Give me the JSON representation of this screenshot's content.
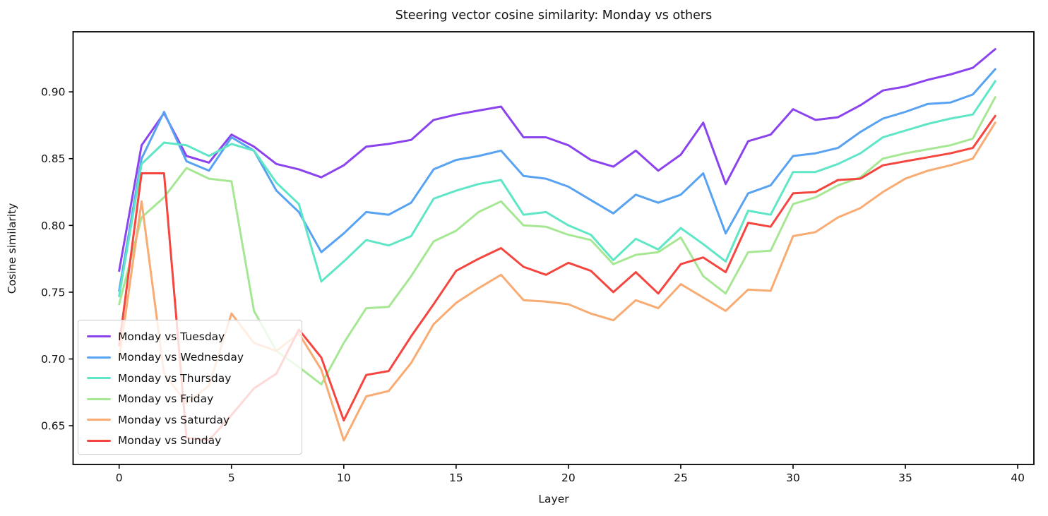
{
  "chart_data": {
    "type": "line",
    "title": "Steering vector cosine similarity: Monday vs others",
    "xlabel": "Layer",
    "ylabel": "Cosine similarity",
    "x": [
      0,
      1,
      2,
      3,
      4,
      5,
      6,
      7,
      8,
      9,
      10,
      11,
      12,
      13,
      14,
      15,
      16,
      17,
      18,
      19,
      20,
      21,
      22,
      23,
      24,
      25,
      26,
      27,
      28,
      29,
      30,
      31,
      32,
      33,
      34,
      35,
      36,
      37,
      38,
      39
    ],
    "xticks": {
      "values": [
        0,
        5,
        10,
        15,
        20,
        25,
        30,
        35,
        40
      ],
      "labels": [
        "0",
        "5",
        "10",
        "15",
        "20",
        "25",
        "30",
        "35",
        "40"
      ]
    },
    "yticks": {
      "values": [
        0.65,
        0.7,
        0.75,
        0.8,
        0.85,
        0.9
      ],
      "labels": [
        "0.65",
        "0.70",
        "0.75",
        "0.80",
        "0.85",
        "0.90"
      ]
    },
    "xlim": [
      -2.05,
      40.72
    ],
    "ylim": [
      0.621,
      0.945
    ],
    "grid": false,
    "legend": {
      "position": "lower left"
    },
    "series": [
      {
        "name": "Monday vs Tuesday",
        "color": "#8b43ee",
        "values": [
          0.766,
          0.86,
          0.884,
          0.852,
          0.847,
          0.868,
          0.859,
          0.846,
          0.842,
          0.836,
          0.845,
          0.859,
          0.861,
          0.864,
          0.879,
          0.883,
          0.886,
          0.889,
          0.866,
          0.866,
          0.86,
          0.849,
          0.844,
          0.856,
          0.841,
          0.853,
          0.877,
          0.831,
          0.863,
          0.868,
          0.887,
          0.879,
          0.881,
          0.89,
          0.901,
          0.904,
          0.909,
          0.913,
          0.918,
          0.932
        ]
      },
      {
        "name": "Monday vs Wednesday",
        "color": "#58a2f2",
        "values": [
          0.751,
          0.85,
          0.885,
          0.848,
          0.841,
          0.866,
          0.856,
          0.826,
          0.81,
          0.78,
          0.794,
          0.81,
          0.808,
          0.817,
          0.842,
          0.849,
          0.852,
          0.856,
          0.837,
          0.835,
          0.829,
          0.819,
          0.809,
          0.823,
          0.817,
          0.823,
          0.839,
          0.794,
          0.824,
          0.83,
          0.852,
          0.854,
          0.858,
          0.87,
          0.88,
          0.885,
          0.891,
          0.892,
          0.898,
          0.917
        ]
      },
      {
        "name": "Monday vs Thursday",
        "color": "#5fe6c7",
        "values": [
          0.747,
          0.846,
          0.862,
          0.86,
          0.852,
          0.861,
          0.856,
          0.832,
          0.816,
          0.758,
          0.773,
          0.789,
          0.785,
          0.792,
          0.82,
          0.826,
          0.831,
          0.834,
          0.808,
          0.81,
          0.8,
          0.793,
          0.774,
          0.79,
          0.782,
          0.798,
          0.786,
          0.773,
          0.811,
          0.808,
          0.84,
          0.84,
          0.846,
          0.854,
          0.866,
          0.871,
          0.876,
          0.88,
          0.883,
          0.908
        ]
      },
      {
        "name": "Monday vs Friday",
        "color": "#a6e794",
        "values": [
          0.741,
          0.806,
          0.821,
          0.843,
          0.835,
          0.833,
          0.736,
          0.706,
          0.694,
          0.681,
          0.712,
          0.738,
          0.739,
          0.762,
          0.788,
          0.796,
          0.81,
          0.818,
          0.8,
          0.799,
          0.793,
          0.789,
          0.771,
          0.778,
          0.78,
          0.791,
          0.762,
          0.749,
          0.78,
          0.781,
          0.816,
          0.821,
          0.83,
          0.836,
          0.85,
          0.854,
          0.857,
          0.86,
          0.865,
          0.896
        ]
      },
      {
        "name": "Monday vs Saturday",
        "color": "#f8ab72",
        "values": [
          0.7,
          0.818,
          0.689,
          0.667,
          0.68,
          0.734,
          0.712,
          0.706,
          0.719,
          0.692,
          0.639,
          0.672,
          0.676,
          0.697,
          0.726,
          0.742,
          0.753,
          0.763,
          0.744,
          0.743,
          0.741,
          0.734,
          0.729,
          0.744,
          0.738,
          0.756,
          0.746,
          0.736,
          0.752,
          0.751,
          0.792,
          0.795,
          0.806,
          0.813,
          0.825,
          0.835,
          0.841,
          0.845,
          0.85,
          0.877
        ]
      },
      {
        "name": "Monday vs Sunday",
        "color": "#f5453f",
        "values": [
          0.71,
          0.839,
          0.839,
          0.641,
          0.639,
          0.658,
          0.678,
          0.689,
          0.722,
          0.701,
          0.654,
          0.688,
          0.691,
          0.717,
          0.741,
          0.766,
          0.775,
          0.783,
          0.769,
          0.763,
          0.772,
          0.766,
          0.75,
          0.765,
          0.749,
          0.771,
          0.776,
          0.765,
          0.802,
          0.799,
          0.824,
          0.825,
          0.834,
          0.835,
          0.845,
          0.848,
          0.851,
          0.854,
          0.858,
          0.882
        ]
      }
    ]
  }
}
